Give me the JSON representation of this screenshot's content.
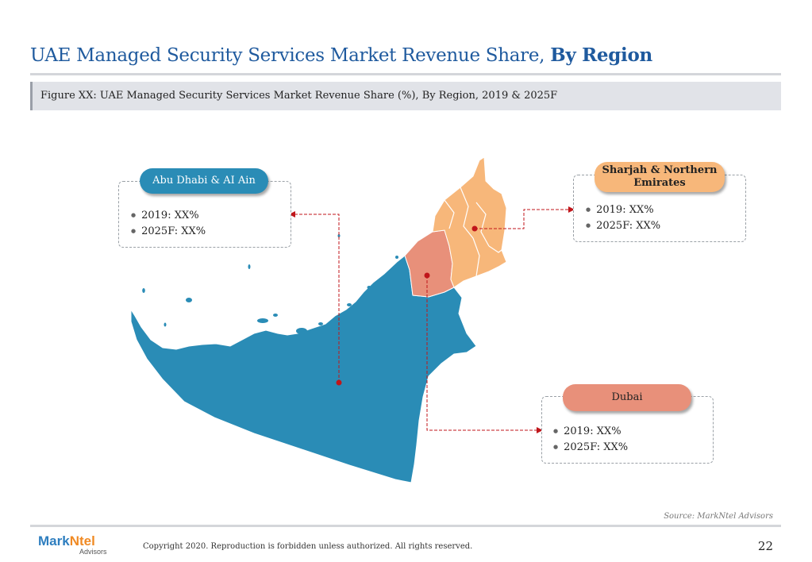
{
  "header": {
    "title_main": "UAE Managed Security Services Market Revenue Share, ",
    "title_bold": "By Region",
    "figure_caption": "Figure XX: UAE Managed Security Services Market Revenue Share (%), By Region, 2019 & 2025F"
  },
  "regions": {
    "abu_dhabi": {
      "label": "Abu Dhabi & AI Ain",
      "color": "#2a8cb6",
      "y2019": "2019: XX%",
      "y2025": "2025F: XX%"
    },
    "sharjah": {
      "label_line1": "Sharjah & Northern",
      "label_line2": "Emirates",
      "color": "#f7b77a",
      "y2019": "2019: XX%",
      "y2025": "2025F: XX%"
    },
    "dubai": {
      "label": "Dubai",
      "color": "#e8907a",
      "y2019": "2019: XX%",
      "y2025": "2025F: XX%"
    }
  },
  "colors": {
    "title": "#1f5a9e",
    "connector": "#c0161b",
    "logo_blue": "#2e7ebf",
    "logo_orange": "#f08a24"
  },
  "footer": {
    "source": "Source: MarkNtel Advisors",
    "logo_mark": "Mark",
    "logo_ntel": "Ntel",
    "logo_sub": "Advisors",
    "copyright": "Copyright 2020. Reproduction is forbidden unless authorized. All rights reserved.",
    "page_number": "22"
  }
}
